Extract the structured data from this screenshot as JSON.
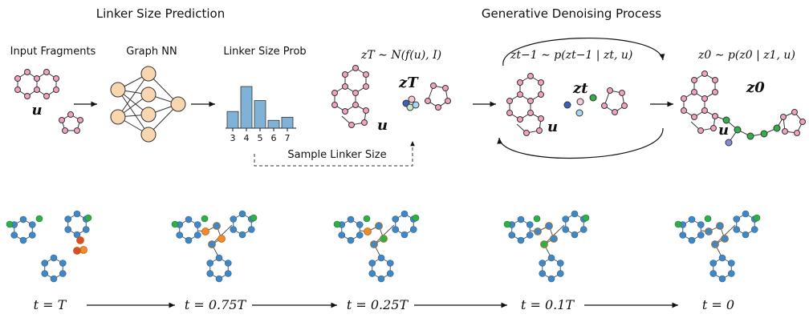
{
  "headers": {
    "linker_size_prediction": "Linker Size Prediction",
    "generative_denoising": "Generative Denoising Process"
  },
  "labels": {
    "input_fragments": "Input Fragments",
    "graph_nn": "Graph NN",
    "linker_size_prob": "Linker Size Prob",
    "sample_linker_size": "Sample Linker Size",
    "u": "u",
    "zT": "zT",
    "zt": "zt",
    "z0": "z0"
  },
  "equations": {
    "zT_dist": "zT ∼ N(f(u), I)",
    "reverse_step": "zt−1 ∼ p(zt−1 | zt, u)",
    "z0_dist": "z0 ∼ p(z0 | z1, u)"
  },
  "chart_data": {
    "type": "bar",
    "categories": [
      "3",
      "4",
      "5",
      "6",
      "7"
    ],
    "values": [
      0.32,
      0.8,
      0.53,
      0.15,
      0.21
    ],
    "title": "Linker Size Prob",
    "xlabel": "",
    "ylabel": "",
    "bar_color": "#7fb2d6"
  },
  "timeline": [
    {
      "label": "t = T"
    },
    {
      "label": "t = 0.75T"
    },
    {
      "label": "t = 0.25T"
    },
    {
      "label": "t = 0.1T"
    },
    {
      "label": "t = 0"
    }
  ],
  "colors": {
    "fragment_node": "#f2a0c4",
    "nn_node": "#f8d7b0",
    "blue_atom": "#3f88c5",
    "green_atom": "#2fae4a",
    "orange_atom": "#f08a2a",
    "red_atom": "#e04a2a"
  }
}
